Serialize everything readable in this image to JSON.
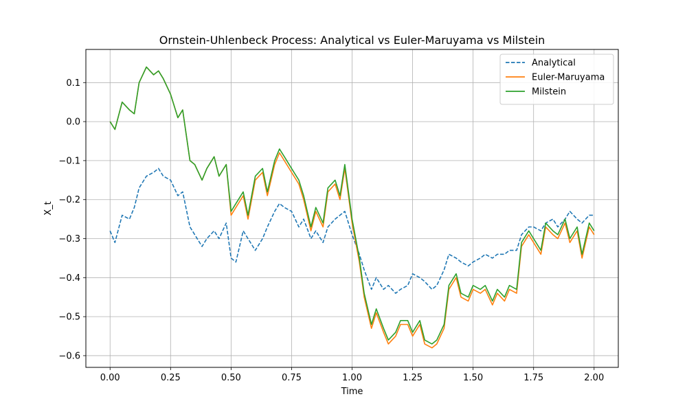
{
  "chart_data": {
    "type": "line",
    "title": "Ornstein-Uhlenbeck Process: Analytical vs Euler-Maruyama vs Milstein",
    "xlabel": "Time",
    "ylabel": "X_t",
    "xlim": [
      -0.1,
      2.1
    ],
    "ylim": [
      -0.63,
      0.185
    ],
    "xticks": [
      0.0,
      0.25,
      0.5,
      0.75,
      1.0,
      1.25,
      1.5,
      1.75,
      2.0
    ],
    "xtick_labels": [
      "0.00",
      "0.25",
      "0.50",
      "0.75",
      "1.00",
      "1.25",
      "1.50",
      "1.75",
      "2.00"
    ],
    "yticks": [
      -0.6,
      -0.5,
      -0.4,
      -0.3,
      -0.2,
      -0.1,
      0.0,
      0.1
    ],
    "ytick_labels": [
      "−0.6",
      "−0.5",
      "−0.4",
      "−0.3",
      "−0.2",
      "−0.1",
      "0.0",
      "0.1"
    ],
    "grid": true,
    "legend_position": "top-right",
    "x": [
      0.0,
      0.02,
      0.05,
      0.08,
      0.1,
      0.12,
      0.15,
      0.18,
      0.2,
      0.22,
      0.25,
      0.28,
      0.3,
      0.33,
      0.35,
      0.38,
      0.4,
      0.43,
      0.45,
      0.48,
      0.5,
      0.52,
      0.55,
      0.57,
      0.6,
      0.63,
      0.65,
      0.68,
      0.7,
      0.72,
      0.75,
      0.78,
      0.8,
      0.83,
      0.85,
      0.88,
      0.9,
      0.93,
      0.95,
      0.97,
      1.0,
      1.03,
      1.05,
      1.08,
      1.1,
      1.13,
      1.15,
      1.18,
      1.2,
      1.23,
      1.25,
      1.28,
      1.3,
      1.33,
      1.35,
      1.38,
      1.4,
      1.43,
      1.45,
      1.48,
      1.5,
      1.53,
      1.55,
      1.58,
      1.6,
      1.63,
      1.65,
      1.68,
      1.7,
      1.73,
      1.75,
      1.78,
      1.8,
      1.83,
      1.85,
      1.88,
      1.9,
      1.93,
      1.95,
      1.98,
      2.0
    ],
    "series": [
      {
        "name": "Analytical",
        "color": "#1f77b4",
        "style": "dashed",
        "values": [
          -0.28,
          -0.31,
          -0.24,
          -0.25,
          -0.22,
          -0.17,
          -0.14,
          -0.13,
          -0.12,
          -0.14,
          -0.15,
          -0.19,
          -0.18,
          -0.27,
          -0.29,
          -0.32,
          -0.3,
          -0.28,
          -0.3,
          -0.26,
          -0.35,
          -0.36,
          -0.28,
          -0.3,
          -0.33,
          -0.3,
          -0.27,
          -0.23,
          -0.21,
          -0.22,
          -0.23,
          -0.27,
          -0.25,
          -0.3,
          -0.28,
          -0.31,
          -0.27,
          -0.25,
          -0.24,
          -0.23,
          -0.29,
          -0.34,
          -0.38,
          -0.43,
          -0.4,
          -0.43,
          -0.42,
          -0.44,
          -0.43,
          -0.42,
          -0.39,
          -0.4,
          -0.41,
          -0.43,
          -0.42,
          -0.38,
          -0.34,
          -0.35,
          -0.36,
          -0.37,
          -0.36,
          -0.35,
          -0.34,
          -0.35,
          -0.34,
          -0.34,
          -0.33,
          -0.33,
          -0.29,
          -0.27,
          -0.27,
          -0.28,
          -0.26,
          -0.25,
          -0.27,
          -0.25,
          -0.23,
          -0.25,
          -0.26,
          -0.24,
          -0.24
        ]
      },
      {
        "name": "Euler-Maruyama",
        "color": "#ff7f0e",
        "style": "solid",
        "values": [
          0.0,
          -0.02,
          0.05,
          0.03,
          0.02,
          0.1,
          0.14,
          0.12,
          0.13,
          0.11,
          0.07,
          0.01,
          0.03,
          -0.1,
          -0.11,
          -0.15,
          -0.12,
          -0.09,
          -0.14,
          -0.11,
          -0.24,
          -0.22,
          -0.19,
          -0.25,
          -0.15,
          -0.13,
          -0.19,
          -0.11,
          -0.08,
          -0.1,
          -0.13,
          -0.16,
          -0.2,
          -0.28,
          -0.23,
          -0.27,
          -0.18,
          -0.16,
          -0.2,
          -0.12,
          -0.26,
          -0.36,
          -0.45,
          -0.53,
          -0.49,
          -0.54,
          -0.57,
          -0.55,
          -0.52,
          -0.52,
          -0.55,
          -0.52,
          -0.57,
          -0.58,
          -0.57,
          -0.53,
          -0.43,
          -0.4,
          -0.45,
          -0.46,
          -0.43,
          -0.44,
          -0.43,
          -0.47,
          -0.44,
          -0.46,
          -0.43,
          -0.44,
          -0.32,
          -0.29,
          -0.31,
          -0.34,
          -0.27,
          -0.29,
          -0.3,
          -0.26,
          -0.31,
          -0.28,
          -0.35,
          -0.27,
          -0.29
        ]
      },
      {
        "name": "Milstein",
        "color": "#2ca02c",
        "style": "solid",
        "values": [
          0.0,
          -0.02,
          0.05,
          0.03,
          0.02,
          0.1,
          0.14,
          0.12,
          0.13,
          0.11,
          0.07,
          0.01,
          0.03,
          -0.1,
          -0.11,
          -0.15,
          -0.12,
          -0.09,
          -0.14,
          -0.11,
          -0.23,
          -0.21,
          -0.18,
          -0.24,
          -0.14,
          -0.12,
          -0.18,
          -0.1,
          -0.07,
          -0.09,
          -0.12,
          -0.15,
          -0.19,
          -0.27,
          -0.22,
          -0.26,
          -0.17,
          -0.15,
          -0.19,
          -0.11,
          -0.25,
          -0.35,
          -0.44,
          -0.52,
          -0.48,
          -0.53,
          -0.56,
          -0.54,
          -0.51,
          -0.51,
          -0.54,
          -0.51,
          -0.56,
          -0.57,
          -0.56,
          -0.52,
          -0.42,
          -0.39,
          -0.44,
          -0.45,
          -0.42,
          -0.43,
          -0.42,
          -0.46,
          -0.43,
          -0.45,
          -0.42,
          -0.43,
          -0.31,
          -0.28,
          -0.3,
          -0.33,
          -0.26,
          -0.28,
          -0.29,
          -0.25,
          -0.3,
          -0.27,
          -0.34,
          -0.26,
          -0.28
        ]
      }
    ]
  }
}
